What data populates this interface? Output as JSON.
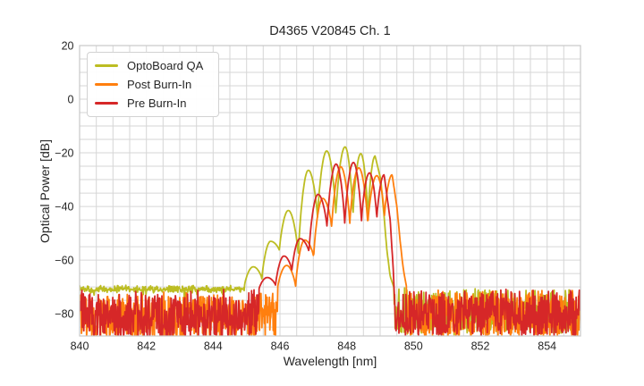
{
  "title": "D4365 V20845 Ch. 1",
  "axis_labels": {
    "x": "Wavelength [nm]",
    "y": "Optical Power [dB]"
  },
  "legend": {
    "items": [
      {
        "label": "OptoBoard QA",
        "color": "#bcbd22"
      },
      {
        "label": "Post Burn-In",
        "color": "#ff7f0e"
      },
      {
        "label": "Pre Burn-In",
        "color": "#d62728"
      }
    ]
  },
  "chart_data": {
    "type": "line",
    "title": "D4365 V20845 Ch. 1",
    "xlabel": "Wavelength [nm]",
    "ylabel": "Optical Power [dB]",
    "xlim": [
      840,
      855
    ],
    "ylim": [
      -88.3,
      20
    ],
    "xticks": [
      840,
      842,
      844,
      846,
      848,
      850,
      852,
      854
    ],
    "yticks": [
      20,
      0,
      -20,
      -40,
      -60,
      -80
    ],
    "grid": {
      "on": true,
      "x_step_nm": 0.5,
      "y_step_db": 5,
      "color": "#d6d6d6"
    },
    "legend_position": "upper left",
    "sample_step_nm": 0.014,
    "description": "Laser optical spectra: multimode peak near 848 nm rising ~50 dB above a noisy floor (~-70 to -88 dB); spectrum cuts off sharply near 849.5 nm.",
    "series": [
      {
        "name": "OptoBoard QA",
        "color": "#bcbd22",
        "seed": 7,
        "mode_peaks": [
          [
            845.2,
            -62.5
          ],
          [
            845.72,
            -53.0
          ],
          [
            846.25,
            -41.5
          ],
          [
            846.85,
            -26.5
          ],
          [
            847.4,
            -19.3
          ],
          [
            847.95,
            -17.8
          ],
          [
            848.42,
            -20.3
          ],
          [
            848.85,
            -21.2
          ]
        ],
        "mode_valleys": [
          -67.0,
          -56.5,
          -58.5,
          -44.5,
          -43.5,
          -44.0,
          -44.5
        ],
        "lead_valley": -69.5,
        "tail": [
          [
            849.02,
            -30.0
          ],
          [
            849.12,
            -44.0
          ],
          [
            849.2,
            -56.0
          ],
          [
            849.3,
            -66.0
          ],
          [
            849.42,
            -70.5
          ]
        ],
        "noise_gap": [
          849.05,
          849.42
        ],
        "noise_left": {
          "band": true,
          "top": -69.3
        },
        "noise_right": {
          "from": 849.42,
          "top": -70.6,
          "depth": 17
        }
      },
      {
        "name": "Post Burn-In",
        "color": "#ff7f0e",
        "seed": 13,
        "mode_peaks": [
          [
            846.2,
            -62.0
          ],
          [
            846.74,
            -52.5
          ],
          [
            847.28,
            -37.0
          ],
          [
            847.82,
            -25.2
          ],
          [
            848.36,
            -25.6
          ],
          [
            848.9,
            -28.5
          ],
          [
            849.36,
            -28.2
          ]
        ],
        "mode_valleys": [
          -70.0,
          -59.0,
          -48.0,
          -47.0,
          -47.0,
          -44.0
        ],
        "lead_valley": -70.5,
        "tail": [
          [
            849.5,
            -40.0
          ],
          [
            849.6,
            -53.0
          ],
          [
            849.68,
            -62.0
          ],
          [
            849.73,
            -66.0
          ],
          [
            849.8,
            -70.5
          ]
        ],
        "noise_gap": [
          849.5,
          849.8
        ],
        "noise_left": {
          "top": -72.3,
          "depth": 17
        },
        "noise_right": {
          "from": 849.8,
          "top": -71.6,
          "depth": 17
        }
      },
      {
        "name": "Pre Burn-In",
        "color": "#d62728",
        "seed": 29,
        "mode_peaks": [
          [
            845.62,
            -66.5
          ],
          [
            846.12,
            -58.5
          ],
          [
            846.6,
            -52.0
          ],
          [
            847.14,
            -35.5
          ],
          [
            847.68,
            -24.2
          ],
          [
            848.2,
            -23.6
          ],
          [
            848.68,
            -27.5
          ],
          [
            849.12,
            -28.2
          ]
        ],
        "mode_valleys": [
          -69.5,
          -64.0,
          -57.0,
          -48.0,
          -47.0,
          -46.0,
          -45.0
        ],
        "lead_valley": -71.0,
        "tail": [
          [
            849.3,
            -45.0
          ],
          [
            849.4,
            -65.0
          ],
          [
            849.47,
            -87.5
          ],
          [
            849.55,
            -75.5
          ]
        ],
        "noise_gap": [
          849.28,
          849.55
        ],
        "noise_left": {
          "top": -71.3,
          "depth": 18
        },
        "noise_right": {
          "from": 849.55,
          "top": -71.0,
          "depth": 17
        }
      }
    ]
  }
}
